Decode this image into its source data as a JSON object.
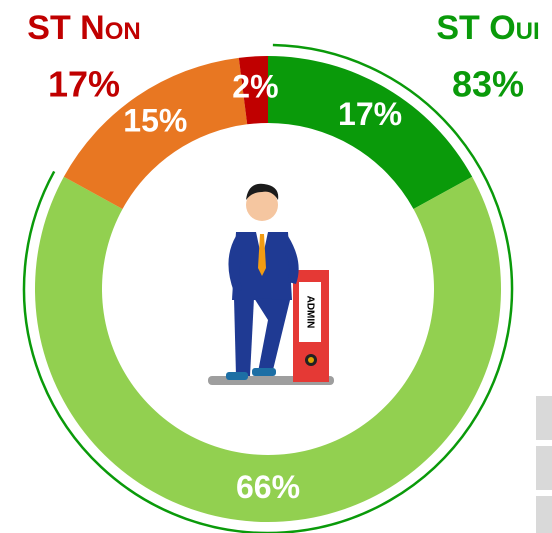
{
  "chart_data": {
    "type": "donut",
    "values": [
      17,
      66,
      15,
      2
    ],
    "value_labels": [
      "17%",
      "66%",
      "15%",
      "2%"
    ],
    "colors": [
      "#0a9a0a",
      "#92d050",
      "#e87722",
      "#c00000"
    ],
    "groups": [
      {
        "name": "ST Oui",
        "value": 83,
        "value_label": "83%",
        "color": "#0a9a0a",
        "outer_arc": true
      },
      {
        "name": "ST Non",
        "value": 17,
        "value_label": "17%",
        "color": "#c00000",
        "outer_arc": false
      }
    ]
  }
}
